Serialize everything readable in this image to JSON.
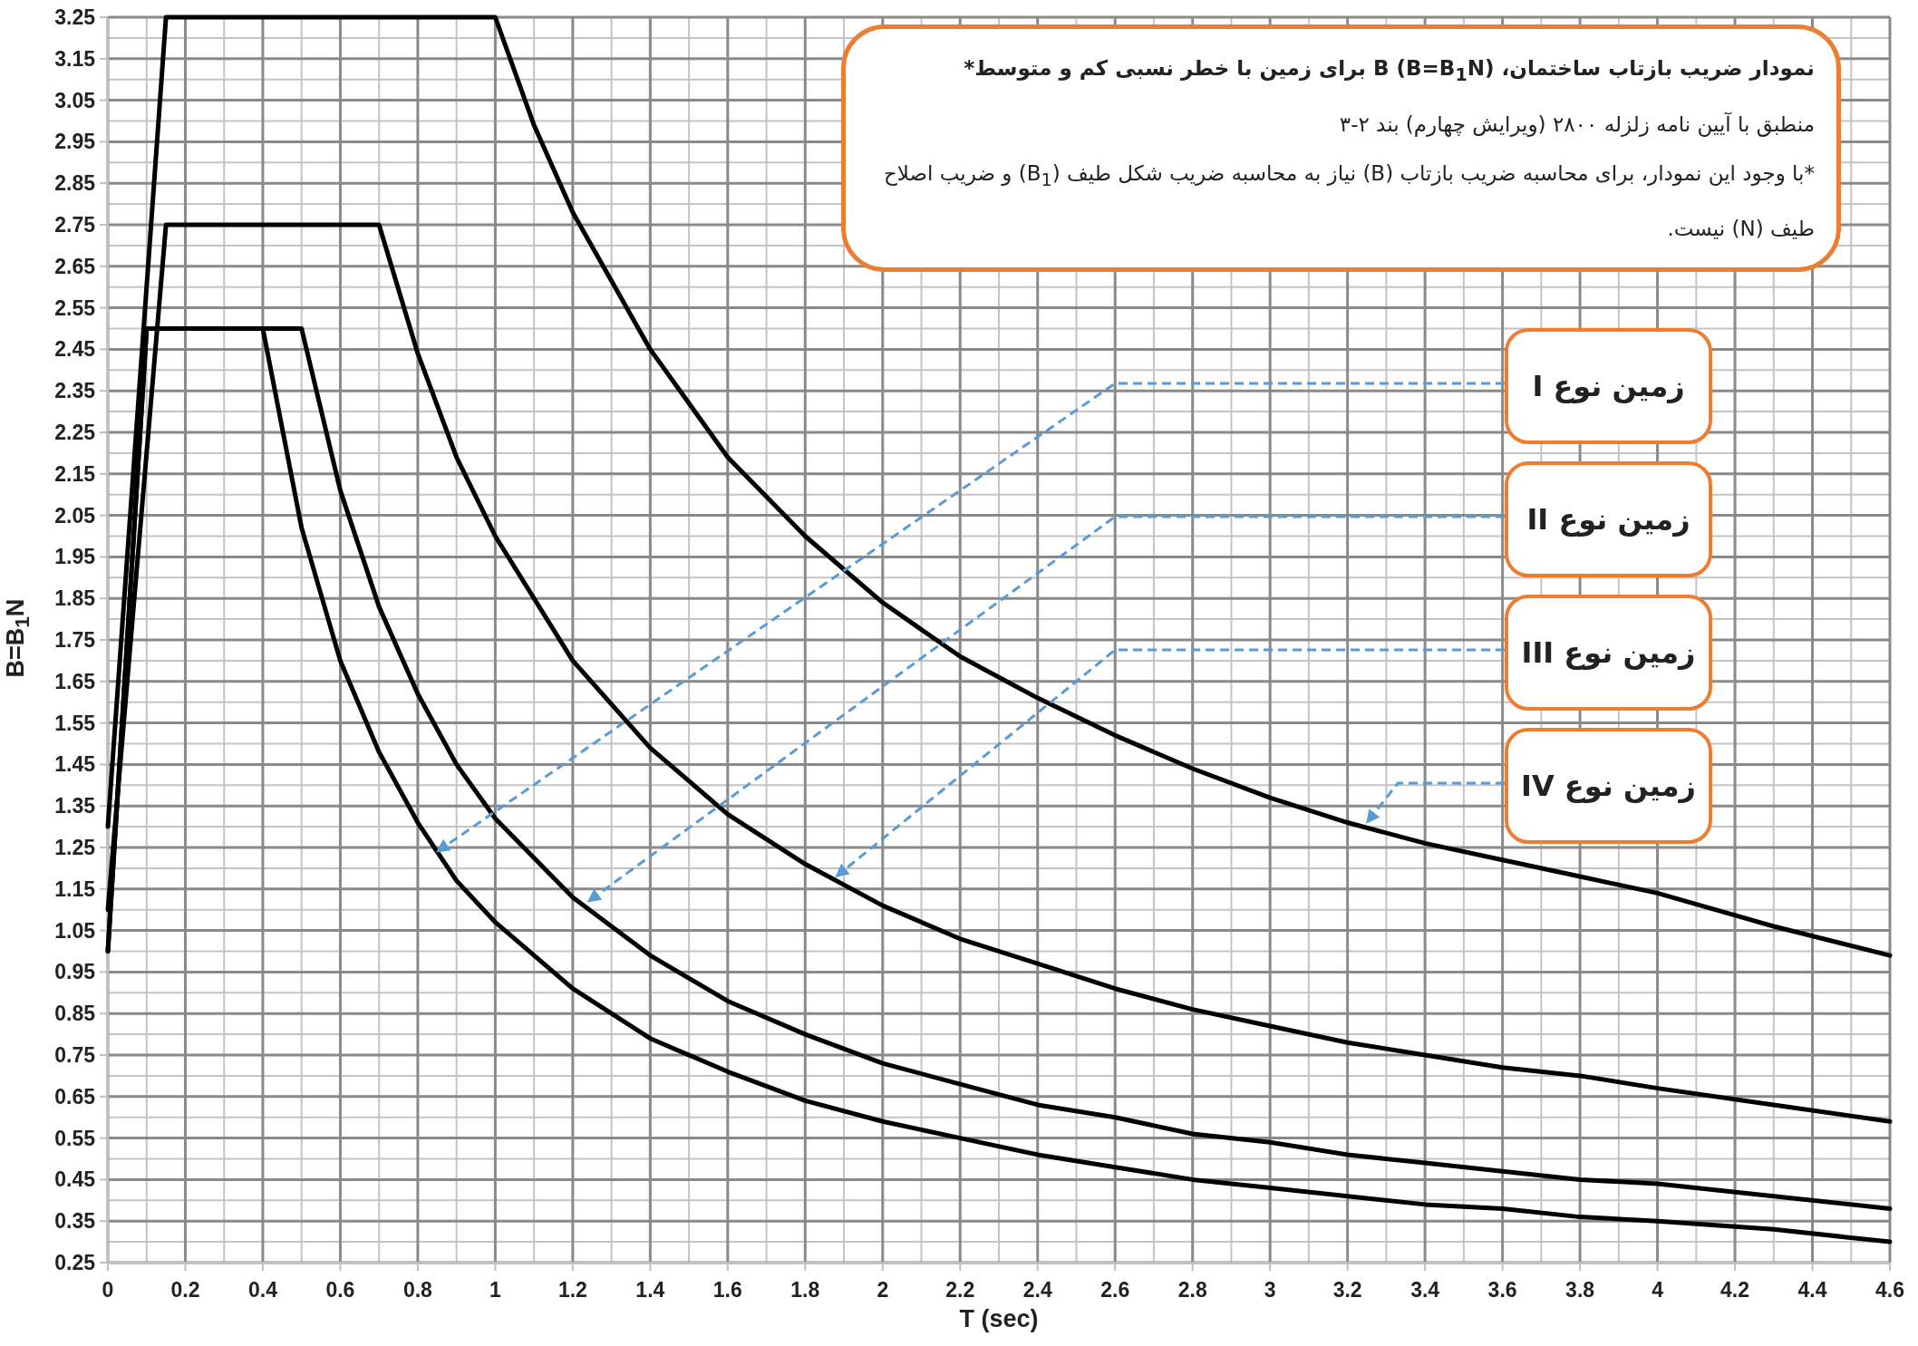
{
  "chart_data": {
    "type": "line",
    "title": "نمودار ضریب بازتاب ساختمان، B (B=B$_{1}$N) برای زمین با خطر نسبی کم و متوسط*",
    "subtitle": "منطبق با آیین نامه زلزله ۲۸۰۰ (ویرایش چهارم) بند ۲-۳",
    "xlabel": "T (sec)",
    "ylabel": "B=B$_{1}$N",
    "xlim": [
      0,
      4.6
    ],
    "ylim": [
      0.25,
      3.25
    ],
    "xticks": [
      0,
      0.2,
      0.4,
      0.6,
      0.8,
      1,
      1.2,
      1.4,
      1.6,
      1.8,
      2,
      2.2,
      2.4,
      2.6,
      2.8,
      3,
      3.2,
      3.4,
      3.6,
      3.8,
      4,
      4.2,
      4.4,
      4.6
    ],
    "yticks": [
      0.25,
      0.35,
      0.45,
      0.55,
      0.65,
      0.75,
      0.85,
      0.95,
      1.05,
      1.15,
      1.25,
      1.35,
      1.45,
      1.55,
      1.65,
      1.75,
      1.85,
      1.95,
      2.05,
      2.15,
      2.25,
      2.35,
      2.45,
      2.55,
      2.65,
      2.75,
      2.85,
      2.95,
      3.05,
      3.15,
      3.25
    ],
    "grid": true,
    "series": [
      {
        "color": "#000000",
        "x": [
          0,
          0.1,
          0.4,
          0.5,
          0.6,
          0.7,
          0.8,
          0.9,
          1.0,
          1.2,
          1.4,
          1.6,
          1.8,
          2.0,
          2.2,
          2.4,
          2.6,
          2.8,
          3.0,
          3.2,
          3.4,
          3.6,
          3.8,
          4.0,
          4.3,
          4.6
        ],
        "values": [
          1,
          2.5,
          2.5,
          2.02,
          1.7,
          1.48,
          1.31,
          1.17,
          1.07,
          0.91,
          0.79,
          0.71,
          0.64,
          0.59,
          0.55,
          0.51,
          0.48,
          0.45,
          0.43,
          0.41,
          0.39,
          0.38,
          0.36,
          0.35,
          0.33,
          0.3
        ]
      },
      {
        "color": "#000000",
        "x": [
          0,
          0.1,
          0.5,
          0.6,
          0.7,
          0.8,
          0.9,
          1.0,
          1.2,
          1.4,
          1.6,
          1.8,
          2.0,
          2.2,
          2.4,
          2.6,
          2.8,
          3.0,
          3.2,
          3.4,
          3.6,
          3.8,
          4.0,
          4.3,
          4.6
        ],
        "values": [
          1,
          2.5,
          2.5,
          2.11,
          1.83,
          1.62,
          1.45,
          1.32,
          1.13,
          0.99,
          0.88,
          0.8,
          0.73,
          0.68,
          0.63,
          0.6,
          0.56,
          0.54,
          0.51,
          0.49,
          0.47,
          0.45,
          0.44,
          0.41,
          0.38
        ]
      },
      {
        "color": "#000000",
        "x": [
          0,
          0.15,
          0.7,
          0.8,
          0.9,
          1.0,
          1.2,
          1.4,
          1.6,
          1.8,
          2.0,
          2.2,
          2.4,
          2.6,
          2.8,
          3.0,
          3.2,
          3.4,
          3.6,
          3.8,
          4.0,
          4.3,
          4.6
        ],
        "values": [
          1.1,
          2.75,
          2.75,
          2.44,
          2.19,
          2.0,
          1.7,
          1.49,
          1.33,
          1.21,
          1.11,
          1.03,
          0.97,
          0.91,
          0.86,
          0.82,
          0.78,
          0.75,
          0.72,
          0.7,
          0.67,
          0.63,
          0.59
        ]
      },
      {
        "color": "#000000",
        "x": [
          0,
          0.15,
          1.0,
          1.1,
          1.2,
          1.4,
          1.6,
          1.8,
          2.0,
          2.2,
          2.4,
          2.6,
          2.8,
          3.0,
          3.2,
          3.4,
          3.6,
          3.8,
          4.0,
          4.3,
          4.6
        ],
        "values": [
          1.3,
          3.25,
          3.25,
          2.99,
          2.78,
          2.45,
          2.19,
          2.0,
          1.84,
          1.71,
          1.61,
          1.52,
          1.44,
          1.37,
          1.31,
          1.26,
          1.22,
          1.18,
          1.14,
          1.06,
          0.99
        ]
      }
    ],
    "annotations": [
      "*با وجود این نمودار، برای محاسبه ضریب بازتاب (B) نیاز به محاسبه ضریب شکل طیف (B$_{1}$) و ضریب اصلاح طیف (N) نیست.",
      {
        "text": "زمین نوع I",
        "x": 0.85,
        "y": 1.24
      },
      {
        "text": "زمین نوع II",
        "x": 1.24,
        "y": 1.12
      },
      {
        "text": "زمین نوع III",
        "x": 1.88,
        "y": 1.18
      },
      {
        "text": "زمین نوع IV",
        "x": 3.25,
        "y": 1.31
      }
    ]
  }
}
